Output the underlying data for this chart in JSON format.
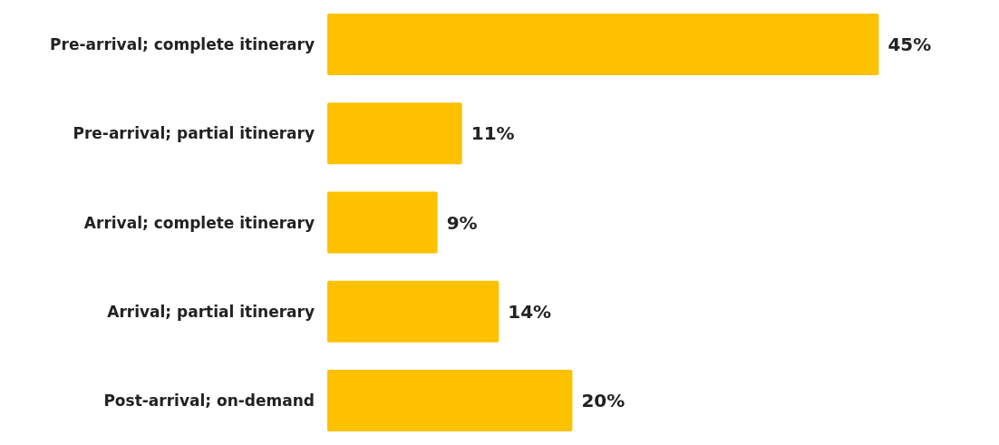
{
  "chart_data": {
    "type": "bar",
    "orientation": "horizontal",
    "categories": [
      "Pre-arrival; complete itinerary",
      "Pre-arrival; partial itinerary",
      "Arrival; complete itinerary",
      "Arrival; partial itinerary",
      "Post-arrival; on-demand"
    ],
    "values": [
      45,
      11,
      9,
      14,
      20
    ],
    "value_labels": [
      "45%",
      "11%",
      "9%",
      "14%",
      "20%"
    ],
    "color": "#fdc100"
  }
}
